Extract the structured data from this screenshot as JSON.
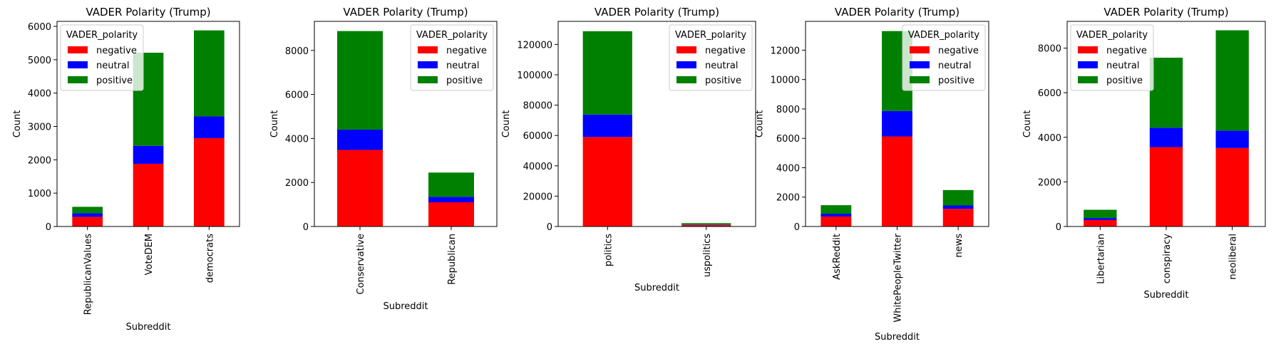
{
  "legend_colors": {
    "negative": "#ff0000",
    "neutral": "#0000ff",
    "positive": "#008000"
  },
  "chart_data": [
    {
      "type": "bar",
      "stacked": true,
      "title": "VADER Polarity (Trump)",
      "xlabel": "Subreddit",
      "ylabel": "Count",
      "legend_title": "VADER_polarity",
      "legend_position": "upper-left",
      "categories": [
        "RepublicanValues",
        "VoteDEM",
        "democrats"
      ],
      "series": [
        {
          "name": "negative",
          "values": [
            290,
            1880,
            2650
          ]
        },
        {
          "name": "neutral",
          "values": [
            110,
            540,
            650
          ]
        },
        {
          "name": "positive",
          "values": [
            190,
            2790,
            2580
          ]
        }
      ],
      "ylim": [
        0,
        6150
      ],
      "yticks": [
        0,
        1000,
        2000,
        3000,
        4000,
        5000,
        6000
      ]
    },
    {
      "type": "bar",
      "stacked": true,
      "title": "VADER Polarity (Trump)",
      "xlabel": "Subreddit",
      "ylabel": "Count",
      "legend_title": "VADER_polarity",
      "legend_position": "upper-right",
      "categories": [
        "Conservative",
        "Republican"
      ],
      "series": [
        {
          "name": "negative",
          "values": [
            3480,
            1100
          ]
        },
        {
          "name": "neutral",
          "values": [
            920,
            250
          ]
        },
        {
          "name": "positive",
          "values": [
            4480,
            1100
          ]
        }
      ],
      "ylim": [
        0,
        9320
      ],
      "yticks": [
        0,
        2000,
        4000,
        6000,
        8000
      ]
    },
    {
      "type": "bar",
      "stacked": true,
      "title": "VADER Polarity (Trump)",
      "xlabel": "Subreddit",
      "ylabel": "Count",
      "legend_title": "VADER_polarity",
      "legend_position": "upper-right",
      "categories": [
        "politics",
        "uspolitics"
      ],
      "series": [
        {
          "name": "negative",
          "values": [
            59000,
            1000
          ]
        },
        {
          "name": "neutral",
          "values": [
            14800,
            300
          ]
        },
        {
          "name": "positive",
          "values": [
            54900,
            900
          ]
        }
      ],
      "ylim": [
        0,
        135200
      ],
      "yticks": [
        0,
        20000,
        40000,
        60000,
        80000,
        100000,
        120000
      ]
    },
    {
      "type": "bar",
      "stacked": true,
      "title": "VADER Polarity (Trump)",
      "xlabel": "Subreddit",
      "ylabel": "Count",
      "legend_title": "VADER_polarity",
      "legend_position": "upper-right",
      "categories": [
        "AskReddit",
        "WhitePeopleTwitter",
        "news"
      ],
      "series": [
        {
          "name": "negative",
          "values": [
            680,
            6130,
            1200
          ]
        },
        {
          "name": "neutral",
          "values": [
            190,
            1730,
            230
          ]
        },
        {
          "name": "positive",
          "values": [
            580,
            5440,
            1050
          ]
        }
      ],
      "ylim": [
        0,
        13960
      ],
      "yticks": [
        0,
        2000,
        4000,
        6000,
        8000,
        10000,
        12000
      ]
    },
    {
      "type": "bar",
      "stacked": true,
      "title": "VADER Polarity (Trump)",
      "xlabel": "Subreddit",
      "ylabel": "Count",
      "legend_title": "VADER_polarity",
      "legend_position": "upper-left",
      "categories": [
        "Libertarian",
        "conspiracy",
        "neoliberal"
      ],
      "series": [
        {
          "name": "negative",
          "values": [
            290,
            3560,
            3520
          ]
        },
        {
          "name": "neutral",
          "values": [
            90,
            870,
            780
          ]
        },
        {
          "name": "positive",
          "values": [
            370,
            3140,
            4500
          ]
        }
      ],
      "ylim": [
        0,
        9200
      ],
      "yticks": [
        0,
        2000,
        4000,
        6000,
        8000
      ]
    }
  ]
}
